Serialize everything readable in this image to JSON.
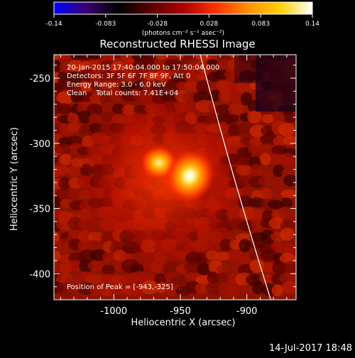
{
  "chart_data": {
    "type": "heatmap",
    "title": "Reconstructed RHESSI Image",
    "xlabel": "Heliocentric X (arcsec)",
    "ylabel": "Heliocentric Y (arcsec)",
    "xlim": [
      -1045,
      -863
    ],
    "ylim": [
      -420,
      -232
    ],
    "xticks": [
      -1000,
      -950,
      -900
    ],
    "yticks": [
      -250,
      -300,
      -350,
      -400
    ],
    "colorbar": {
      "label": "(photons cm⁻² s⁻¹ asec⁻²)",
      "range": [
        -0.14,
        0.14
      ],
      "ticks": [
        "-0.14",
        "-0.083",
        "-0.028",
        "0.028",
        "0.083",
        "0.14"
      ],
      "colormap": "hot",
      "stops": [
        "#0000ff",
        "#3b0070",
        "#000000",
        "#5a0000",
        "#b00000",
        "#ff3000",
        "#ff9000",
        "#ffd000",
        "#ffffff"
      ]
    },
    "info_lines": [
      "20-Jan-2015 17:40:04.000 to 17:50:04.000",
      "Detectors: 3F 5F 6F 7F 8F 9F, Att 0",
      "Energy Range: 3.0 - 6.0 keV",
      "Clean    Total counts: 7.41E+04"
    ],
    "peak_label": "Position of Peak = [-943,-325]",
    "peak": [
      -943,
      -325
    ],
    "secondary_source": [
      -966,
      -315
    ],
    "limb_curve": [
      [
        -935,
        -232
      ],
      [
        -920,
        -290
      ],
      [
        -905,
        -345
      ],
      [
        -882,
        -420
      ]
    ],
    "timestamp": "14-Jul-2017 18:48"
  }
}
